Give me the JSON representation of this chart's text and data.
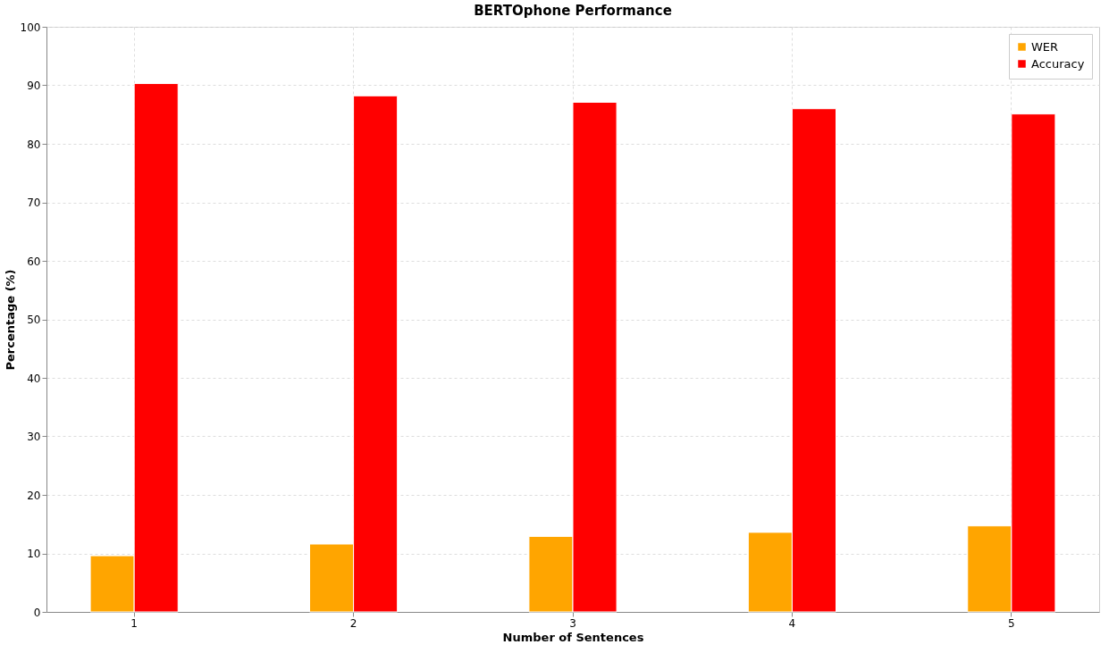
{
  "chart_data": {
    "type": "bar",
    "title": "BERTOphone Performance",
    "xlabel": "Number of Sentences",
    "ylabel": "Percentage (%)",
    "categories": [
      "1",
      "2",
      "3",
      "4",
      "5"
    ],
    "series": [
      {
        "name": "WER",
        "color": "#ffa500",
        "values": [
          9.6,
          11.6,
          12.9,
          13.6,
          14.7
        ]
      },
      {
        "name": "Accuracy",
        "color": "#ff0000",
        "values": [
          90.3,
          88.2,
          87.1,
          86.0,
          85.1
        ]
      }
    ],
    "ylim": [
      0,
      100
    ],
    "yticks": [
      0,
      10,
      20,
      30,
      40,
      50,
      60,
      70,
      80,
      90,
      100
    ],
    "grid": true,
    "legend": "top right"
  }
}
